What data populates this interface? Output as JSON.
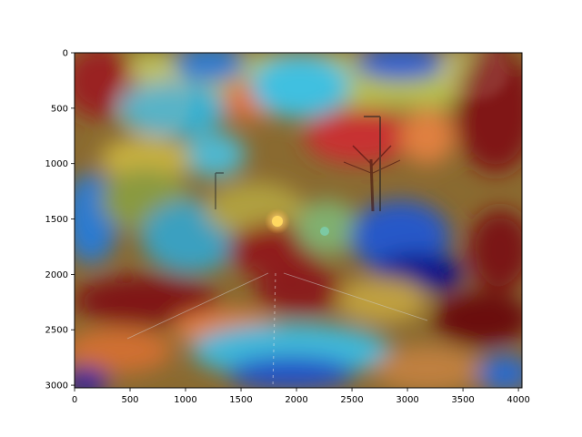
{
  "figure": {
    "kind": "image-with-heatmap-overlay",
    "colormap": "jet",
    "overlay_alpha": 0.5
  },
  "image": {
    "description_icon": "street-at-night-with-heatmap-icon",
    "x_range": [
      0,
      4032
    ],
    "y_range": [
      0,
      3024
    ],
    "y_inverted": true
  },
  "axes": {
    "x_ticks": [
      0,
      500,
      1000,
      1500,
      2000,
      2500,
      3000,
      3500,
      4000
    ],
    "y_ticks": [
      0,
      500,
      1000,
      1500,
      2000,
      2500,
      3000
    ],
    "x_tick_labels": [
      "0",
      "500",
      "1000",
      "1500",
      "2000",
      "2500",
      "3000",
      "3500",
      "4000"
    ],
    "y_tick_labels": [
      "0",
      "500",
      "1000",
      "1500",
      "2000",
      "2500",
      "3000"
    ]
  },
  "colors": {
    "deep_red": "#7a1010",
    "red": "#c0202a",
    "orange": "#e07030",
    "yellow": "#c8c040",
    "green": "#70b070",
    "cyan": "#40c0e0",
    "blue": "#2060d0",
    "deep_blue": "#101080"
  }
}
